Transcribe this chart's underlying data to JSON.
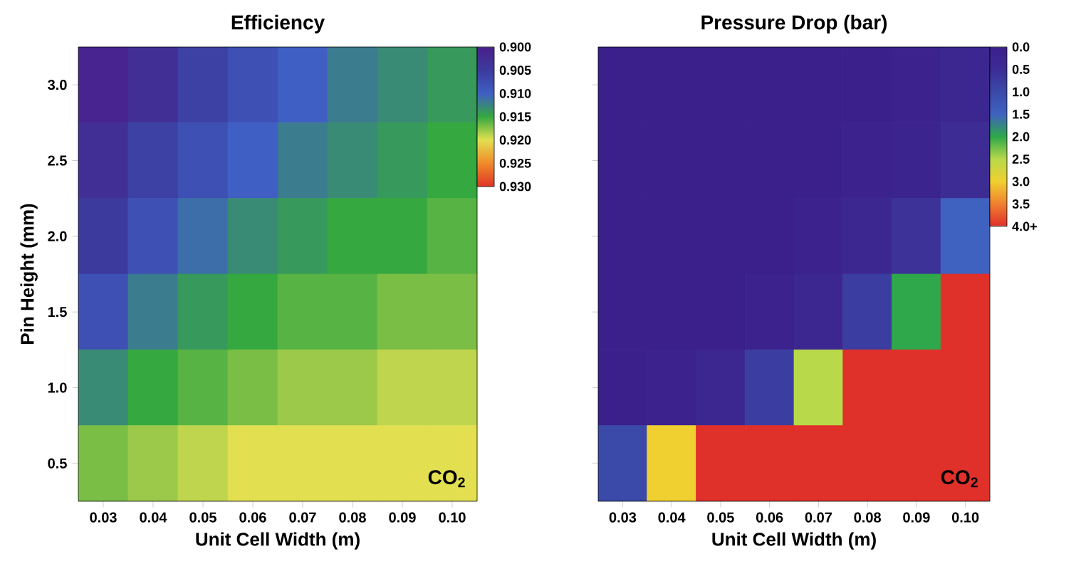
{
  "chart_data": [
    {
      "type": "heatmap",
      "title": "Efficiency",
      "xlabel": "Unit Cell Width (m)",
      "ylabel": "Pin Height (mm)",
      "categories": [
        "0.03",
        "0.04",
        "0.05",
        "0.06",
        "0.07",
        "0.08",
        "0.09",
        "0.10"
      ],
      "y_categories": [
        "3.0",
        "2.5",
        "2.0",
        "1.5",
        "1.0",
        "0.5"
      ],
      "cells": [
        [
          0.901,
          0.903,
          0.906,
          0.908,
          0.91,
          0.912,
          0.913,
          0.914
        ],
        [
          0.903,
          0.906,
          0.908,
          0.91,
          0.912,
          0.913,
          0.914,
          0.915
        ],
        [
          0.905,
          0.908,
          0.911,
          0.913,
          0.914,
          0.915,
          0.915,
          0.916
        ],
        [
          0.908,
          0.912,
          0.914,
          0.915,
          0.916,
          0.916,
          0.917,
          0.917
        ],
        [
          0.913,
          0.915,
          0.916,
          0.917,
          0.918,
          0.918,
          0.919,
          0.919
        ],
        [
          0.917,
          0.918,
          0.919,
          0.92,
          0.92,
          0.92,
          0.92,
          0.92
        ]
      ],
      "clim": [
        0.9,
        0.93
      ],
      "cticks": [
        {
          "value": 0.9,
          "label": "0.900"
        },
        {
          "value": 0.905,
          "label": "0.905"
        },
        {
          "value": 0.91,
          "label": "0.910"
        },
        {
          "value": 0.915,
          "label": "0.915"
        },
        {
          "value": 0.92,
          "label": "0.920"
        },
        {
          "value": 0.925,
          "label": "0.925"
        },
        {
          "value": 0.93,
          "label": "0.930"
        }
      ],
      "colors": [
        "#4a1f8c",
        "#3c3a9c",
        "#3f5fc4",
        "#35a840",
        "#e2e050",
        "#f08a2a",
        "#e03528"
      ],
      "annotations": [
        {
          "text": "CO$_{2}$"
        }
      ]
    },
    {
      "type": "heatmap",
      "title": "Pressure Drop (bar)",
      "xlabel": "Unit Cell Width (m)",
      "categories": [
        "0.03",
        "0.04",
        "0.05",
        "0.06",
        "0.07",
        "0.08",
        "0.09",
        "0.10"
      ],
      "y_categories": [
        "3.0",
        "2.5",
        "2.0",
        "1.5",
        "1.0",
        "0.5"
      ],
      "cells": [
        [
          0.0,
          0.0,
          0.0,
          0.0,
          0.0,
          0.0,
          0.1,
          0.3
        ],
        [
          0.0,
          0.0,
          0.0,
          0.0,
          0.0,
          0.1,
          0.2,
          0.5
        ],
        [
          0.0,
          0.0,
          0.0,
          0.0,
          0.1,
          0.3,
          0.6,
          1.5
        ],
        [
          0.0,
          0.0,
          0.0,
          0.1,
          0.3,
          0.8,
          2.0,
          4.0
        ],
        [
          0.0,
          0.1,
          0.3,
          0.8,
          2.5,
          4.0,
          4.0,
          4.0
        ],
        [
          1.0,
          3.0,
          4.0,
          4.0,
          4.0,
          4.0,
          4.0,
          4.0
        ]
      ],
      "clim": [
        0,
        4
      ],
      "cticks": [
        {
          "value": 0,
          "label": "0.0"
        },
        {
          "value": 0.5,
          "label": "0.5"
        },
        {
          "value": 1,
          "label": "1.0"
        },
        {
          "value": 1.5,
          "label": "1.5"
        },
        {
          "value": 2,
          "label": "2.0"
        },
        {
          "value": 2.5,
          "label": "2.5"
        },
        {
          "value": 3,
          "label": "3.0"
        },
        {
          "value": 3.5,
          "label": "3.5"
        },
        {
          "value": 4,
          "label": "4.0+"
        }
      ],
      "colors": [
        "#3b1f8a",
        "#3c2c94",
        "#3b4aa8",
        "#3f62c0",
        "#2ea84a",
        "#b8d94a",
        "#f0d030",
        "#f08030",
        "#e0302a"
      ],
      "tick_labels": "x",
      "annotations": [
        {
          "text": "CO$_{2}$"
        }
      ]
    }
  ]
}
